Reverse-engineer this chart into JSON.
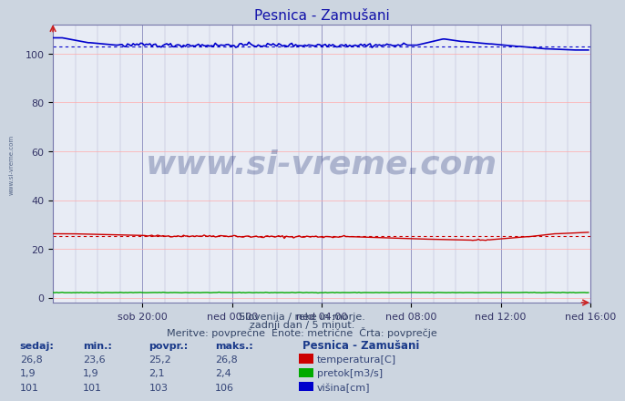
{
  "title": "Pesnica - Zamušani",
  "bg_color": "#ccd5e0",
  "plot_bg_color": "#e8ecf5",
  "xlabel_ticks": [
    "sob 20:00",
    "ned 00:00",
    "ned 04:00",
    "ned 08:00",
    "ned 12:00",
    "ned 16:00"
  ],
  "yticks": [
    0,
    20,
    40,
    60,
    80,
    100
  ],
  "ylim": [
    -2,
    112
  ],
  "xlim": [
    0,
    288
  ],
  "subtitle1": "Slovenija / reke in morje.",
  "subtitle2": "zadnji dan / 5 minut.",
  "subtitle3": "Meritve: povprečne  Enote: metrične  Črta: povprečje",
  "legend_title": "Pesnica - Zamušani",
  "legend_items": [
    {
      "label": "temperatura[C]",
      "color": "#cc0000"
    },
    {
      "label": "pretok[m3/s]",
      "color": "#00aa00"
    },
    {
      "label": "višina[cm]",
      "color": "#0000cc"
    }
  ],
  "table_headers": [
    "sedaj:",
    "min.:",
    "povpr.:",
    "maks.:"
  ],
  "table_rows": [
    [
      "26,8",
      "23,6",
      "25,2",
      "26,8"
    ],
    [
      "1,9",
      "1,9",
      "2,1",
      "2,4"
    ],
    [
      "101",
      "101",
      "103",
      "106"
    ]
  ],
  "temp_avg": 25.2,
  "visina_avg": 103,
  "watermark": "www.si-vreme.com"
}
